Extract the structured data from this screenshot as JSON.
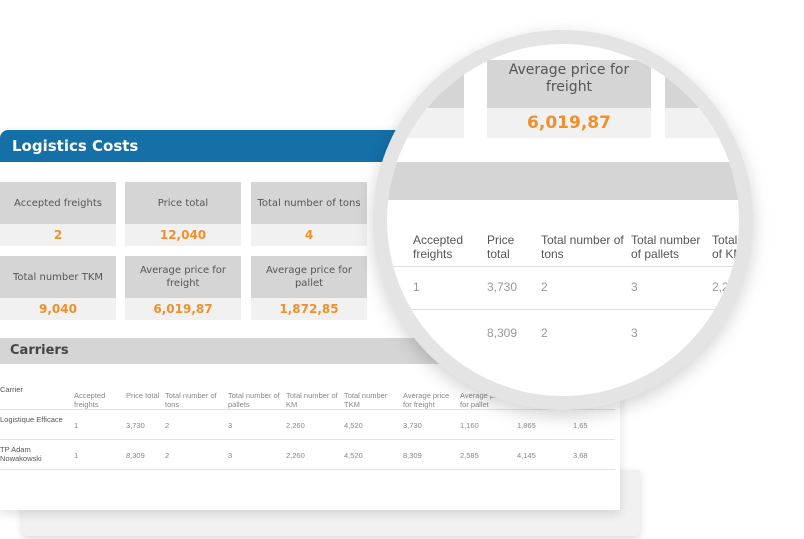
{
  "panel": {
    "title": "Logistics Costs"
  },
  "cards": [
    {
      "label": "Accepted freights",
      "value": "2"
    },
    {
      "label": "Price total",
      "value": "12,040"
    },
    {
      "label": "Total number of tons",
      "value": "4"
    },
    {
      "label": "Total number TKM",
      "value": "9,040"
    },
    {
      "label": "Average price for freight",
      "value": "6,019,87"
    },
    {
      "label": "Average price for pallet",
      "value": "1,872,85"
    }
  ],
  "carriers": {
    "title": "Carriers",
    "headers": [
      "Carrier",
      "Accepted freights",
      "Price total",
      "Total number of tons",
      "Total number of pallets",
      "Total number of KM",
      "Total number TKM",
      "Average price for freight",
      "Average price for pallet",
      "",
      ""
    ],
    "rows": [
      [
        "Logistique Efficace",
        "1",
        "3,730",
        "2",
        "3",
        "2,260",
        "4,520",
        "3,730",
        "1,160",
        "1,865",
        "1,65"
      ],
      [
        "TP Adam Nowakowski",
        "1",
        "8,309",
        "2",
        "3",
        "2,260",
        "4,520",
        "8,309",
        "2,585",
        "4,145",
        "3,68"
      ]
    ]
  },
  "colors": {
    "header": "#1570a8",
    "accent": "#f0902a"
  }
}
